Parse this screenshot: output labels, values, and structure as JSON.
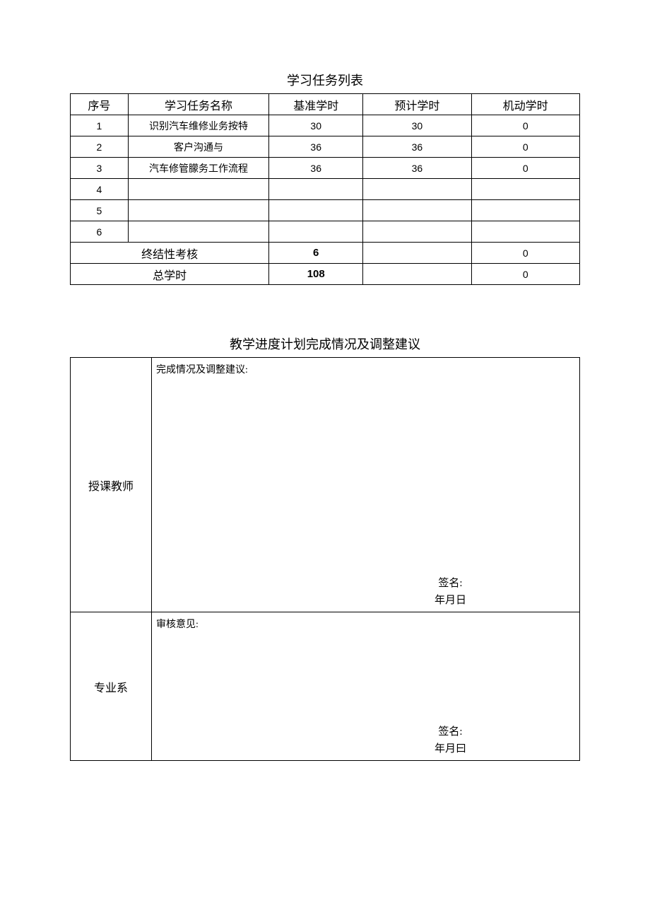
{
  "colors": {
    "background": "#ffffff",
    "border": "#000000",
    "text": "#000000"
  },
  "typography": {
    "title_fontsize": 18,
    "header_fontsize": 16,
    "body_fontsize": 14
  },
  "task_table": {
    "title": "学习任务列表",
    "headers": {
      "seq": "序号",
      "name": "学习任务名称",
      "base": "基准学时",
      "expected": "预计学时",
      "flex": "机动学时"
    },
    "rows": [
      {
        "seq": "1",
        "name": "识别汽车维修业务按特",
        "base": "30",
        "expected": "30",
        "flex": "0"
      },
      {
        "seq": "2",
        "name": "客户沟通与",
        "base": "36",
        "expected": "36",
        "flex": "0"
      },
      {
        "seq": "3",
        "name": "汽车修管朦务工作流程",
        "base": "36",
        "expected": "36",
        "flex": "0"
      },
      {
        "seq": "4",
        "name": "",
        "base": "",
        "expected": "",
        "flex": ""
      },
      {
        "seq": "5",
        "name": "",
        "base": "",
        "expected": "",
        "flex": ""
      },
      {
        "seq": "6",
        "name": "",
        "base": "",
        "expected": "",
        "flex": ""
      }
    ],
    "summary": [
      {
        "label": "终结性考核",
        "base": "6",
        "expected": "",
        "flex": "0"
      },
      {
        "label": "总学时",
        "base": "108",
        "expected": "",
        "flex": "0"
      }
    ]
  },
  "adjust_table": {
    "title": "教学进度计划完成情况及调整建议",
    "rows": {
      "teacher": {
        "label": "授课教师",
        "prompt": "完成情况及调整建议:",
        "sig_label": "签名:",
        "date_label": "年月日"
      },
      "dept": {
        "label": "专业系",
        "prompt": "审核意见:",
        "sig_label": "签名:",
        "date_label": "年月曰"
      }
    }
  }
}
